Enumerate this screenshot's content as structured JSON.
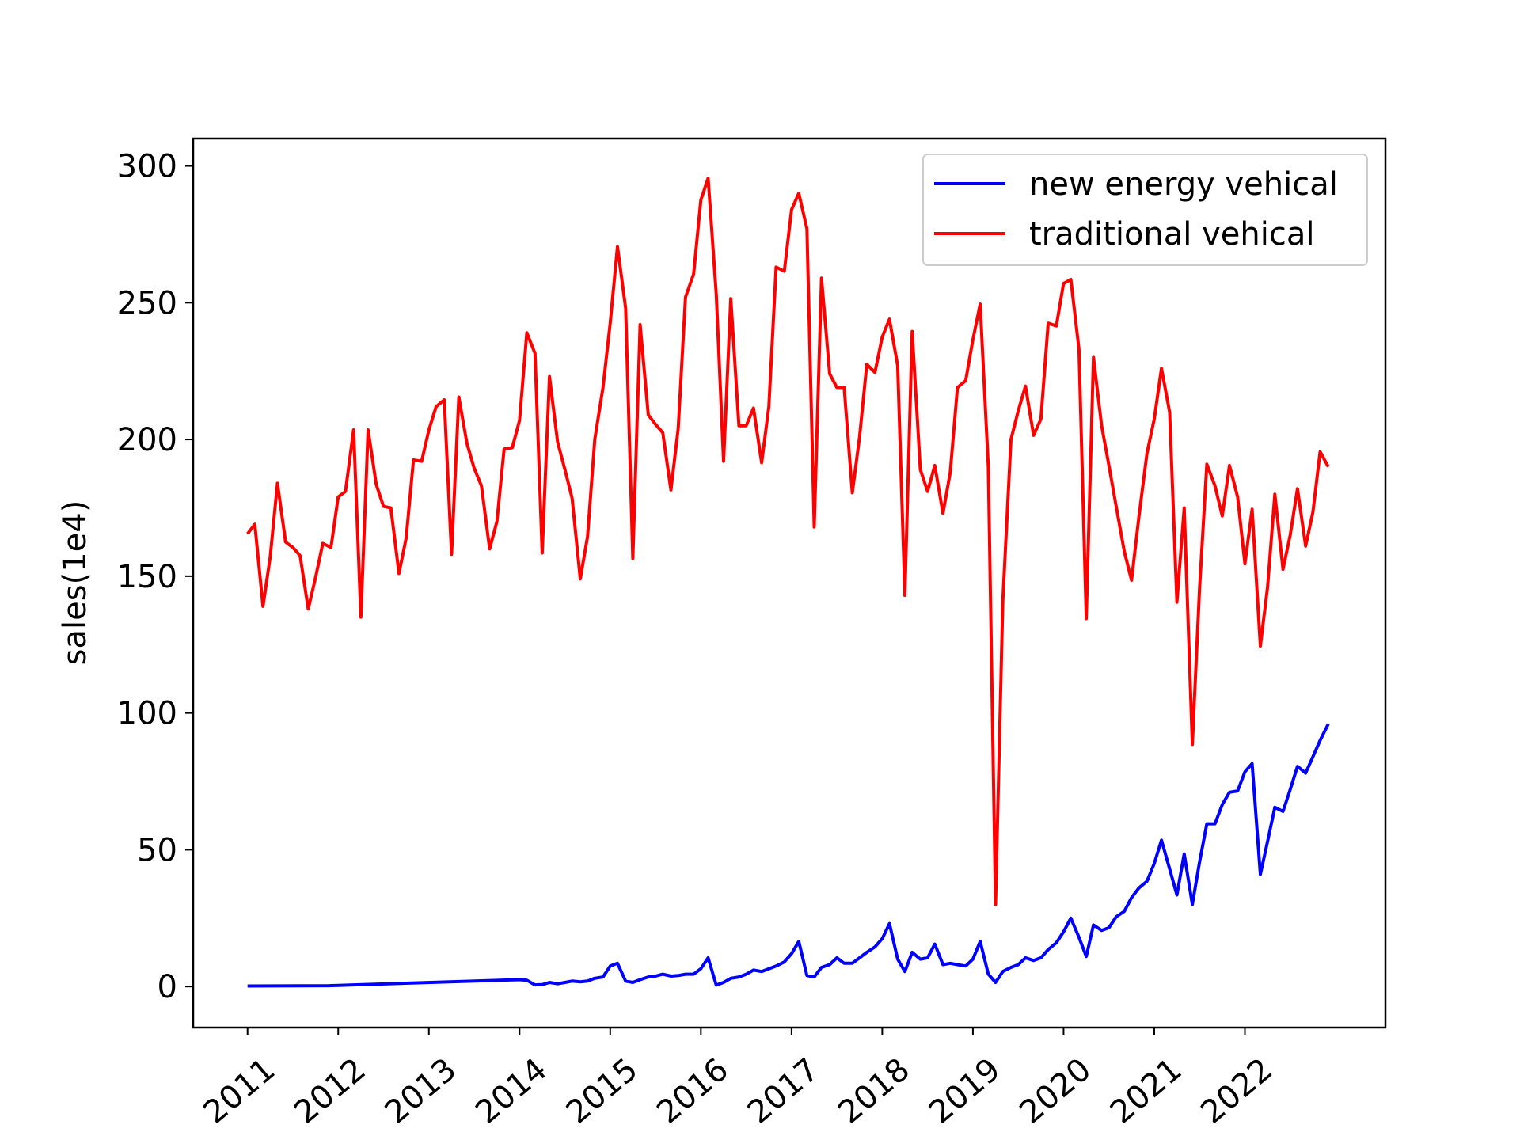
{
  "chart_data": {
    "type": "line",
    "title": "",
    "xlabel": "",
    "ylabel": "sales(1e4)",
    "xlim": [
      2010.4,
      2023.55
    ],
    "ylim": [
      -15,
      310
    ],
    "xticks": [
      2011,
      2012,
      2013,
      2014,
      2015,
      2016,
      2017,
      2018,
      2019,
      2020,
      2021,
      2022
    ],
    "xtick_labels": [
      "2011",
      "2012",
      "2013",
      "2014",
      "2015",
      "2016",
      "2017",
      "2018",
      "2019",
      "2020",
      "2021",
      "2022"
    ],
    "yticks": [
      0,
      50,
      100,
      150,
      200,
      250,
      300
    ],
    "ytick_labels": [
      "0",
      "50",
      "100",
      "150",
      "200",
      "250",
      "300"
    ],
    "grid": false,
    "legend_position": "top-right",
    "series": [
      {
        "name": "new energy vehical",
        "color": "#0000ff",
        "points": [
          [
            2011.0,
            0.2
          ],
          [
            2011.9,
            0.3
          ],
          [
            2014.0,
            2.5
          ],
          [
            2014.08,
            2.3
          ],
          [
            2014.17,
            0.6
          ],
          [
            2014.25,
            0.7
          ],
          [
            2014.33,
            1.5
          ],
          [
            2014.42,
            1.0
          ],
          [
            2014.5,
            1.5
          ],
          [
            2014.58,
            2.0
          ],
          [
            2014.67,
            1.7
          ],
          [
            2014.75,
            2.0
          ],
          [
            2014.83,
            3.0
          ],
          [
            2014.92,
            3.5
          ],
          [
            2015.0,
            7.5
          ],
          [
            2015.08,
            8.5
          ],
          [
            2015.17,
            2.0
          ],
          [
            2015.25,
            1.5
          ],
          [
            2015.33,
            2.5
          ],
          [
            2015.42,
            3.5
          ],
          [
            2015.5,
            3.8
          ],
          [
            2015.58,
            4.5
          ],
          [
            2015.67,
            3.8
          ],
          [
            2015.75,
            4.0
          ],
          [
            2015.83,
            4.5
          ],
          [
            2015.92,
            4.5
          ],
          [
            2016.0,
            6.5
          ],
          [
            2016.08,
            10.5
          ],
          [
            2016.17,
            0.5
          ],
          [
            2016.25,
            1.5
          ],
          [
            2016.33,
            3.0
          ],
          [
            2016.42,
            3.5
          ],
          [
            2016.5,
            4.5
          ],
          [
            2016.58,
            6.0
          ],
          [
            2016.67,
            5.5
          ],
          [
            2016.75,
            6.5
          ],
          [
            2016.83,
            7.5
          ],
          [
            2016.92,
            9.0
          ],
          [
            2017.0,
            12.0
          ],
          [
            2017.08,
            16.5
          ],
          [
            2017.17,
            4.0
          ],
          [
            2017.25,
            3.5
          ],
          [
            2017.33,
            7.0
          ],
          [
            2017.42,
            8.0
          ],
          [
            2017.5,
            10.5
          ],
          [
            2017.58,
            8.5
          ],
          [
            2017.67,
            8.5
          ],
          [
            2017.75,
            10.5
          ],
          [
            2017.83,
            12.5
          ],
          [
            2017.92,
            14.5
          ],
          [
            2018.0,
            17.5
          ],
          [
            2018.08,
            23.0
          ],
          [
            2018.17,
            10.0
          ],
          [
            2018.25,
            5.5
          ],
          [
            2018.33,
            12.5
          ],
          [
            2018.42,
            10.0
          ],
          [
            2018.5,
            10.5
          ],
          [
            2018.58,
            15.5
          ],
          [
            2018.67,
            8.0
          ],
          [
            2018.75,
            8.5
          ],
          [
            2018.83,
            8.0
          ],
          [
            2018.92,
            7.5
          ],
          [
            2019.0,
            10.0
          ],
          [
            2019.08,
            16.5
          ],
          [
            2019.17,
            4.5
          ],
          [
            2019.25,
            1.5
          ],
          [
            2019.33,
            5.5
          ],
          [
            2019.42,
            7.0
          ],
          [
            2019.5,
            8.0
          ],
          [
            2019.58,
            10.5
          ],
          [
            2019.67,
            9.5
          ],
          [
            2019.75,
            10.5
          ],
          [
            2019.83,
            13.5
          ],
          [
            2019.92,
            16.0
          ],
          [
            2020.0,
            20.0
          ],
          [
            2020.08,
            25.0
          ],
          [
            2020.17,
            18.0
          ],
          [
            2020.25,
            11.0
          ],
          [
            2020.33,
            22.5
          ],
          [
            2020.42,
            20.5
          ],
          [
            2020.5,
            21.5
          ],
          [
            2020.58,
            25.5
          ],
          [
            2020.67,
            27.5
          ],
          [
            2020.75,
            32.5
          ],
          [
            2020.83,
            36.0
          ],
          [
            2020.92,
            38.5
          ],
          [
            2021.0,
            45.0
          ],
          [
            2021.08,
            53.5
          ],
          [
            2021.17,
            43.0
          ],
          [
            2021.25,
            33.5
          ],
          [
            2021.33,
            48.5
          ],
          [
            2021.42,
            30.0
          ],
          [
            2021.5,
            45.5
          ],
          [
            2021.58,
            59.5
          ],
          [
            2021.67,
            59.5
          ],
          [
            2021.75,
            66.5
          ],
          [
            2021.83,
            71.0
          ],
          [
            2021.92,
            71.5
          ],
          [
            2022.0,
            78.5
          ],
          [
            2022.08,
            81.5
          ],
          [
            2022.17,
            41.0
          ],
          [
            2022.25,
            53.0
          ],
          [
            2022.33,
            65.5
          ],
          [
            2022.42,
            64.0
          ],
          [
            2022.5,
            72.0
          ],
          [
            2022.58,
            80.5
          ],
          [
            2022.67,
            78.0
          ],
          [
            2022.75,
            84.0
          ],
          [
            2022.83,
            90.0
          ],
          [
            2022.92,
            96.0
          ]
        ]
      },
      {
        "name": "traditional vehical",
        "color": "#ff0000",
        "points": [
          [
            2011.0,
            165.5
          ],
          [
            2011.08,
            169.0
          ],
          [
            2011.17,
            139.0
          ],
          [
            2011.25,
            157.0
          ],
          [
            2011.33,
            184.0
          ],
          [
            2011.42,
            162.5
          ],
          [
            2011.5,
            160.5
          ],
          [
            2011.58,
            157.5
          ],
          [
            2011.67,
            138.0
          ],
          [
            2011.75,
            149.5
          ],
          [
            2011.83,
            162.0
          ],
          [
            2011.92,
            160.5
          ],
          [
            2012.0,
            179.0
          ],
          [
            2012.08,
            181.0
          ],
          [
            2012.17,
            203.5
          ],
          [
            2012.25,
            135.0
          ],
          [
            2012.33,
            203.5
          ],
          [
            2012.42,
            183.5
          ],
          [
            2012.5,
            175.5
          ],
          [
            2012.58,
            175.0
          ],
          [
            2012.67,
            151.0
          ],
          [
            2012.75,
            164.0
          ],
          [
            2012.83,
            192.5
          ],
          [
            2012.92,
            192.0
          ],
          [
            2013.0,
            203.5
          ],
          [
            2013.08,
            212.0
          ],
          [
            2013.17,
            214.5
          ],
          [
            2013.25,
            158.0
          ],
          [
            2013.33,
            215.5
          ],
          [
            2013.42,
            198.5
          ],
          [
            2013.5,
            189.5
          ],
          [
            2013.58,
            183.0
          ],
          [
            2013.67,
            160.0
          ],
          [
            2013.75,
            170.0
          ],
          [
            2013.83,
            196.5
          ],
          [
            2013.92,
            197.0
          ],
          [
            2014.0,
            207.0
          ],
          [
            2014.08,
            239.0
          ],
          [
            2014.17,
            231.5
          ],
          [
            2014.25,
            158.5
          ],
          [
            2014.33,
            223.0
          ],
          [
            2014.42,
            199.0
          ],
          [
            2014.5,
            189.0
          ],
          [
            2014.58,
            178.5
          ],
          [
            2014.67,
            149.0
          ],
          [
            2014.75,
            164.5
          ],
          [
            2014.83,
            200.0
          ],
          [
            2014.92,
            219.0
          ],
          [
            2015.0,
            242.5
          ],
          [
            2015.08,
            270.5
          ],
          [
            2015.17,
            248.0
          ],
          [
            2015.25,
            156.5
          ],
          [
            2015.33,
            242.0
          ],
          [
            2015.42,
            209.0
          ],
          [
            2015.5,
            205.5
          ],
          [
            2015.58,
            202.5
          ],
          [
            2015.67,
            181.5
          ],
          [
            2015.75,
            204.0
          ],
          [
            2015.83,
            252.0
          ],
          [
            2015.92,
            260.5
          ],
          [
            2016.0,
            287.5
          ],
          [
            2016.08,
            295.5
          ],
          [
            2016.17,
            253.0
          ],
          [
            2016.25,
            192.0
          ],
          [
            2016.33,
            251.5
          ],
          [
            2016.42,
            205.0
          ],
          [
            2016.5,
            205.0
          ],
          [
            2016.58,
            211.5
          ],
          [
            2016.67,
            191.5
          ],
          [
            2016.75,
            212.0
          ],
          [
            2016.83,
            263.0
          ],
          [
            2016.92,
            261.5
          ],
          [
            2017.0,
            284.0
          ],
          [
            2017.08,
            290.0
          ],
          [
            2017.17,
            277.0
          ],
          [
            2017.25,
            168.0
          ],
          [
            2017.33,
            259.0
          ],
          [
            2017.42,
            224.0
          ],
          [
            2017.5,
            219.0
          ],
          [
            2017.58,
            219.0
          ],
          [
            2017.67,
            180.5
          ],
          [
            2017.75,
            201.0
          ],
          [
            2017.83,
            227.5
          ],
          [
            2017.92,
            224.5
          ],
          [
            2018.0,
            237.5
          ],
          [
            2018.08,
            244.0
          ],
          [
            2018.17,
            227.0
          ],
          [
            2018.25,
            143.0
          ],
          [
            2018.33,
            239.5
          ],
          [
            2018.42,
            189.0
          ],
          [
            2018.5,
            181.0
          ],
          [
            2018.58,
            190.5
          ],
          [
            2018.67,
            173.0
          ],
          [
            2018.75,
            188.0
          ],
          [
            2018.83,
            219.0
          ],
          [
            2018.92,
            221.5
          ],
          [
            2019.0,
            236.5
          ],
          [
            2019.08,
            249.5
          ],
          [
            2019.17,
            190.0
          ],
          [
            2019.25,
            30.0
          ],
          [
            2019.33,
            141.0
          ],
          [
            2019.42,
            200.0
          ],
          [
            2019.5,
            210.5
          ],
          [
            2019.58,
            219.5
          ],
          [
            2019.67,
            201.5
          ],
          [
            2019.75,
            207.5
          ],
          [
            2019.83,
            242.5
          ],
          [
            2019.92,
            241.5
          ],
          [
            2020.0,
            257.0
          ],
          [
            2020.08,
            258.5
          ],
          [
            2020.17,
            233.0
          ],
          [
            2020.25,
            134.5
          ],
          [
            2020.33,
            230.0
          ],
          [
            2020.42,
            205.0
          ],
          [
            2020.5,
            190.5
          ],
          [
            2020.58,
            175.5
          ],
          [
            2020.67,
            159.0
          ],
          [
            2020.75,
            148.5
          ],
          [
            2020.83,
            171.5
          ],
          [
            2020.92,
            195.0
          ],
          [
            2021.0,
            207.5
          ],
          [
            2021.08,
            226.0
          ],
          [
            2021.17,
            210.0
          ],
          [
            2021.25,
            140.5
          ],
          [
            2021.33,
            175.0
          ],
          [
            2021.42,
            88.5
          ],
          [
            2021.5,
            145.5
          ],
          [
            2021.58,
            191.0
          ],
          [
            2021.67,
            183.0
          ],
          [
            2021.75,
            172.0
          ],
          [
            2021.83,
            190.5
          ],
          [
            2021.92,
            179.0
          ],
          [
            2022.0,
            154.5
          ],
          [
            2022.08,
            174.5
          ],
          [
            2022.17,
            124.5
          ],
          [
            2022.25,
            146.0
          ],
          [
            2022.33,
            180.0
          ],
          [
            2022.42,
            152.5
          ],
          [
            2022.5,
            165.0
          ],
          [
            2022.58,
            182.0
          ],
          [
            2022.67,
            161.0
          ],
          [
            2022.75,
            173.5
          ],
          [
            2022.83,
            195.5
          ],
          [
            2022.92,
            190.0
          ]
        ]
      }
    ]
  }
}
